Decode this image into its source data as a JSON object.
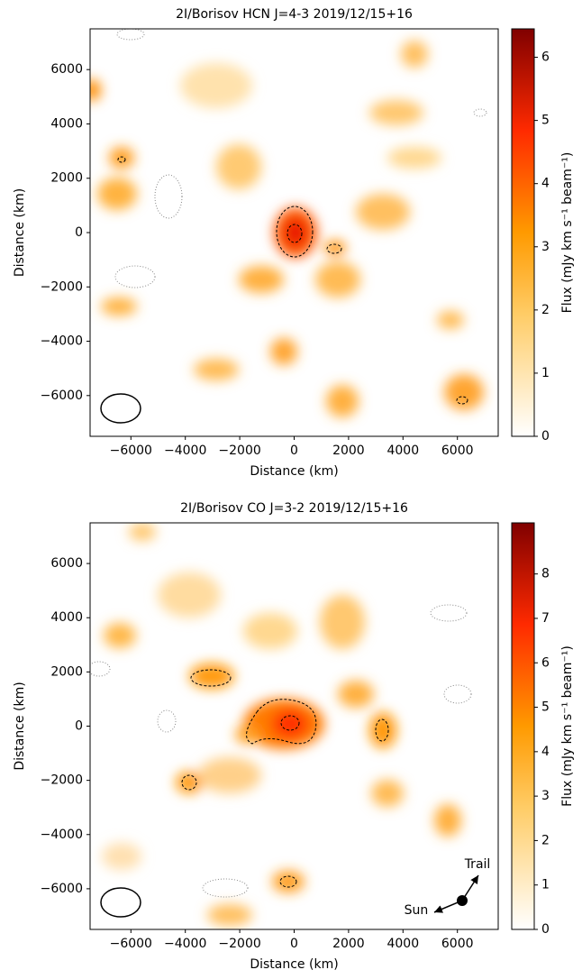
{
  "chart_data": [
    {
      "type": "heatmap",
      "title": "2I/Borisov HCN J=4-3 2019/12/15+16",
      "xlabel": "Distance (km)",
      "ylabel": "Distance (km)",
      "xlim": [
        -7500,
        7500
      ],
      "ylim": [
        -7500,
        7500
      ],
      "xticks": [
        {
          "value": -6000,
          "label": "−6000"
        },
        {
          "value": -4000,
          "label": "−4000"
        },
        {
          "value": -2000,
          "label": "−2000"
        },
        0,
        2000,
        4000,
        6000
      ],
      "yticks": [
        {
          "value": -6000,
          "label": "−6000"
        },
        {
          "value": -4000,
          "label": "−4000"
        },
        {
          "value": -2000,
          "label": "−2000"
        },
        0,
        2000,
        4000,
        6000
      ],
      "colorbar": {
        "label": "Flux (mJy km s⁻¹ beam⁻¹)",
        "lim": [
          0,
          6.45
        ],
        "ticks": [
          0,
          1,
          2,
          3,
          4,
          5,
          6
        ]
      }
    },
    {
      "type": "heatmap",
      "title": "2I/Borisov CO J=3-2 2019/12/15+16",
      "xlabel": "Distance (km)",
      "ylabel": "Distance (km)",
      "xlim": [
        -7500,
        7500
      ],
      "ylim": [
        -7500,
        7500
      ],
      "xticks": [
        {
          "value": -6000,
          "label": "−6000"
        },
        {
          "value": -4000,
          "label": "−4000"
        },
        {
          "value": -2000,
          "label": "−2000"
        },
        0,
        2000,
        4000,
        6000
      ],
      "yticks": [
        {
          "value": -6000,
          "label": "−6000"
        },
        {
          "value": -4000,
          "label": "−4000"
        },
        {
          "value": -2000,
          "label": "−2000"
        },
        0,
        2000,
        4000,
        6000
      ],
      "colorbar": {
        "label": "Flux (mJy km s⁻¹ beam⁻¹)",
        "lim": [
          0,
          9.15
        ],
        "ticks": [
          0,
          1,
          2,
          3,
          4,
          5,
          6,
          7,
          8
        ]
      },
      "annotations": [
        "Trail",
        "Sun"
      ]
    }
  ]
}
